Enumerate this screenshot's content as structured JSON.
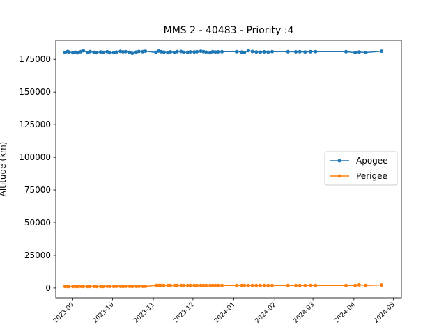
{
  "chart_data": {
    "type": "line",
    "title": "MMS 2 - 40483 - Priority :4",
    "xlabel": "",
    "ylabel": "Altitude (km)",
    "xlim": [
      "2023-08-19",
      "2024-05-07"
    ],
    "ylim": [
      -7500,
      189500
    ],
    "y_ticks": [
      0,
      25000,
      50000,
      75000,
      100000,
      125000,
      150000,
      175000
    ],
    "y_tick_labels": [
      "0",
      "25000",
      "50000",
      "75000",
      "100000",
      "125000",
      "150000",
      "175000"
    ],
    "x_ticks": [
      "2023-09-01",
      "2023-10-01",
      "2023-11-01",
      "2023-12-01",
      "2024-01-01",
      "2024-02-01",
      "2024-03-01",
      "2024-04-01",
      "2024-05-01"
    ],
    "x_tick_labels": [
      "2023-09",
      "2023-10",
      "2023-11",
      "2023-12",
      "2024-01",
      "2024-02",
      "2024-03",
      "2024-04",
      "2024-05"
    ],
    "grid": false,
    "legend_position": "center-right",
    "series": [
      {
        "name": "Apogee",
        "color": "#1f77b4",
        "marker": "circle",
        "x": [
          "2023-08-26",
          "2023-08-28",
          "2023-08-29",
          "2023-09-01",
          "2023-09-03",
          "2023-09-05",
          "2023-09-07",
          "2023-09-09",
          "2023-09-12",
          "2023-09-14",
          "2023-09-17",
          "2023-09-19",
          "2023-09-22",
          "2023-09-24",
          "2023-09-27",
          "2023-09-29",
          "2023-10-02",
          "2023-10-04",
          "2023-10-07",
          "2023-10-09",
          "2023-10-11",
          "2023-10-14",
          "2023-10-16",
          "2023-10-19",
          "2023-10-21",
          "2023-10-24",
          "2023-10-26",
          "2023-11-03",
          "2023-11-05",
          "2023-11-07",
          "2023-11-09",
          "2023-11-12",
          "2023-11-14",
          "2023-11-17",
          "2023-11-19",
          "2023-11-22",
          "2023-11-24",
          "2023-11-27",
          "2023-11-29",
          "2023-12-02",
          "2023-12-04",
          "2023-12-07",
          "2023-12-09",
          "2023-12-11",
          "2023-12-14",
          "2023-12-16",
          "2023-12-18",
          "2023-12-20",
          "2023-12-23",
          "2024-01-03",
          "2024-01-07",
          "2024-01-09",
          "2024-01-12",
          "2024-01-15",
          "2024-01-18",
          "2024-01-21",
          "2024-01-24",
          "2024-01-27",
          "2024-01-30",
          "2024-02-11",
          "2024-02-17",
          "2024-02-20",
          "2024-02-24",
          "2024-02-28",
          "2024-03-03",
          "2024-03-26",
          "2024-04-02",
          "2024-04-05",
          "2024-04-10",
          "2024-04-22"
        ],
        "y": [
          180200,
          181000,
          180600,
          180100,
          180400,
          180000,
          180800,
          181500,
          180200,
          180900,
          180300,
          180100,
          180600,
          180300,
          180800,
          180000,
          180200,
          180500,
          181100,
          180700,
          180900,
          180400,
          179600,
          180500,
          181000,
          180800,
          181200,
          180300,
          181300,
          180800,
          180500,
          180100,
          180700,
          180200,
          180900,
          181000,
          180400,
          180300,
          180700,
          180600,
          180800,
          181200,
          180900,
          180500,
          180000,
          180800,
          180600,
          180700,
          180800,
          180800,
          180500,
          180200,
          181600,
          181000,
          180600,
          180400,
          180700,
          180500,
          180900,
          180800,
          180700,
          180800,
          180600,
          180800,
          180900,
          180800,
          180100,
          180600,
          180200,
          181200
        ]
      },
      {
        "name": "Perigee",
        "color": "#ff7f0e",
        "marker": "circle",
        "x": [
          "2023-08-26",
          "2023-08-28",
          "2023-08-29",
          "2023-09-01",
          "2023-09-03",
          "2023-09-05",
          "2023-09-07",
          "2023-09-09",
          "2023-09-12",
          "2023-09-14",
          "2023-09-17",
          "2023-09-19",
          "2023-09-22",
          "2023-09-24",
          "2023-09-27",
          "2023-09-29",
          "2023-10-02",
          "2023-10-04",
          "2023-10-07",
          "2023-10-09",
          "2023-10-11",
          "2023-10-14",
          "2023-10-16",
          "2023-10-19",
          "2023-10-21",
          "2023-10-24",
          "2023-10-26",
          "2023-11-03",
          "2023-11-05",
          "2023-11-07",
          "2023-11-09",
          "2023-11-12",
          "2023-11-14",
          "2023-11-17",
          "2023-11-19",
          "2023-11-22",
          "2023-11-24",
          "2023-11-27",
          "2023-11-29",
          "2023-12-02",
          "2023-12-04",
          "2023-12-07",
          "2023-12-09",
          "2023-12-11",
          "2023-12-14",
          "2023-12-16",
          "2023-12-18",
          "2023-12-20",
          "2023-12-23",
          "2024-01-03",
          "2024-01-07",
          "2024-01-09",
          "2024-01-12",
          "2024-01-15",
          "2024-01-18",
          "2024-01-21",
          "2024-01-24",
          "2024-01-27",
          "2024-01-30",
          "2024-02-11",
          "2024-02-17",
          "2024-02-20",
          "2024-02-24",
          "2024-02-28",
          "2024-03-03",
          "2024-03-26",
          "2024-04-02",
          "2024-04-05",
          "2024-04-10",
          "2024-04-22"
        ],
        "y": [
          1200,
          1200,
          1100,
          1200,
          1200,
          1200,
          1300,
          1200,
          1200,
          1200,
          1300,
          1200,
          1200,
          1200,
          1300,
          1300,
          1200,
          1300,
          1300,
          1200,
          1300,
          1300,
          1200,
          1300,
          1300,
          1300,
          1300,
          1900,
          2000,
          2000,
          2000,
          2000,
          2000,
          2000,
          2000,
          2000,
          2000,
          1900,
          2000,
          2000,
          2000,
          2000,
          2000,
          2000,
          1900,
          2000,
          1900,
          2000,
          2000,
          1900,
          2000,
          2000,
          1900,
          1900,
          1900,
          2000,
          1900,
          1900,
          1900,
          1900,
          1900,
          2000,
          1900,
          1900,
          1900,
          1900,
          2000,
          2400,
          1900,
          2300
        ]
      }
    ]
  }
}
